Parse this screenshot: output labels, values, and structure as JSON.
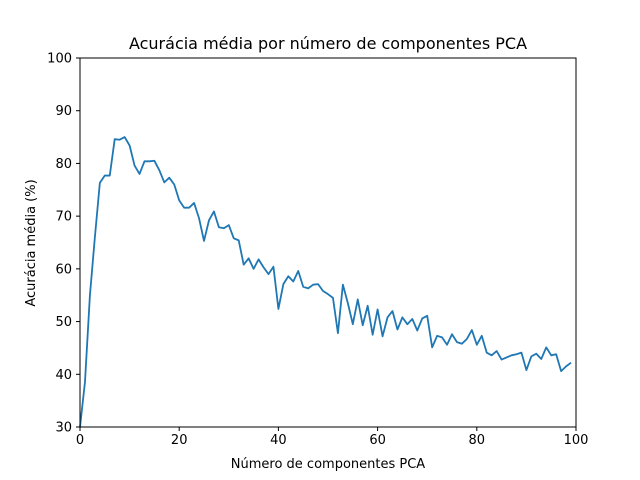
{
  "chart_data": {
    "type": "line",
    "title": "Acurácia média por número de componentes PCA",
    "xlabel": "Número de componentes PCA",
    "ylabel": "Acurácia média (%)",
    "xlim": [
      0,
      100
    ],
    "ylim": [
      30,
      100
    ],
    "xticks": [
      0,
      20,
      40,
      60,
      80,
      100
    ],
    "yticks": [
      30,
      40,
      50,
      60,
      70,
      80,
      90,
      100
    ],
    "grid": false,
    "legend": "none",
    "series": [
      {
        "color": "#1f77b4",
        "x": [
          0,
          1,
          2,
          3,
          4,
          5,
          6,
          7,
          8,
          9,
          10,
          11,
          12,
          13,
          14,
          15,
          16,
          17,
          18,
          19,
          20,
          21,
          22,
          23,
          24,
          25,
          26,
          27,
          28,
          29,
          30,
          31,
          32,
          33,
          34,
          35,
          36,
          37,
          38,
          39,
          40,
          41,
          42,
          43,
          44,
          45,
          46,
          47,
          48,
          49,
          50,
          51,
          52,
          53,
          54,
          55,
          56,
          57,
          58,
          59,
          60,
          61,
          62,
          63,
          64,
          65,
          66,
          67,
          68,
          69,
          70,
          71,
          72,
          73,
          74,
          75,
          76,
          77,
          78,
          79,
          80,
          81,
          82,
          83,
          84,
          85,
          86,
          87,
          88,
          89,
          90,
          91,
          92,
          93,
          94,
          95,
          96,
          97,
          98,
          99
        ],
        "values": [
          30.0,
          38.5,
          55.0,
          66.0,
          76.3,
          77.7,
          77.7,
          84.6,
          84.5,
          85.0,
          83.4,
          79.6,
          78.0,
          80.4,
          80.4,
          80.5,
          78.7,
          76.4,
          77.3,
          76.0,
          73.0,
          71.6,
          71.6,
          72.5,
          69.6,
          65.3,
          69.2,
          70.9,
          67.9,
          67.7,
          68.3,
          65.8,
          65.4,
          60.8,
          62.0,
          60.0,
          61.8,
          60.3,
          59.0,
          60.4,
          52.4,
          57.1,
          58.6,
          57.6,
          59.6,
          56.6,
          56.3,
          57.0,
          57.1,
          55.8,
          55.2,
          54.5,
          47.8,
          57.0,
          53.5,
          49.5,
          54.2,
          49.3,
          53.0,
          47.5,
          52.3,
          47.2,
          50.8,
          52.0,
          48.5,
          50.8,
          49.5,
          50.5,
          48.3,
          50.6,
          51.1,
          45.1,
          47.3,
          47.0,
          45.6,
          47.6,
          46.1,
          45.8,
          46.7,
          48.4,
          45.6,
          47.3,
          44.1,
          43.6,
          44.4,
          42.8,
          43.2,
          43.6,
          43.8,
          44.1,
          40.8,
          43.4,
          43.9,
          42.9,
          45.1,
          43.6,
          43.8,
          40.6,
          41.5,
          42.2
        ]
      }
    ]
  }
}
